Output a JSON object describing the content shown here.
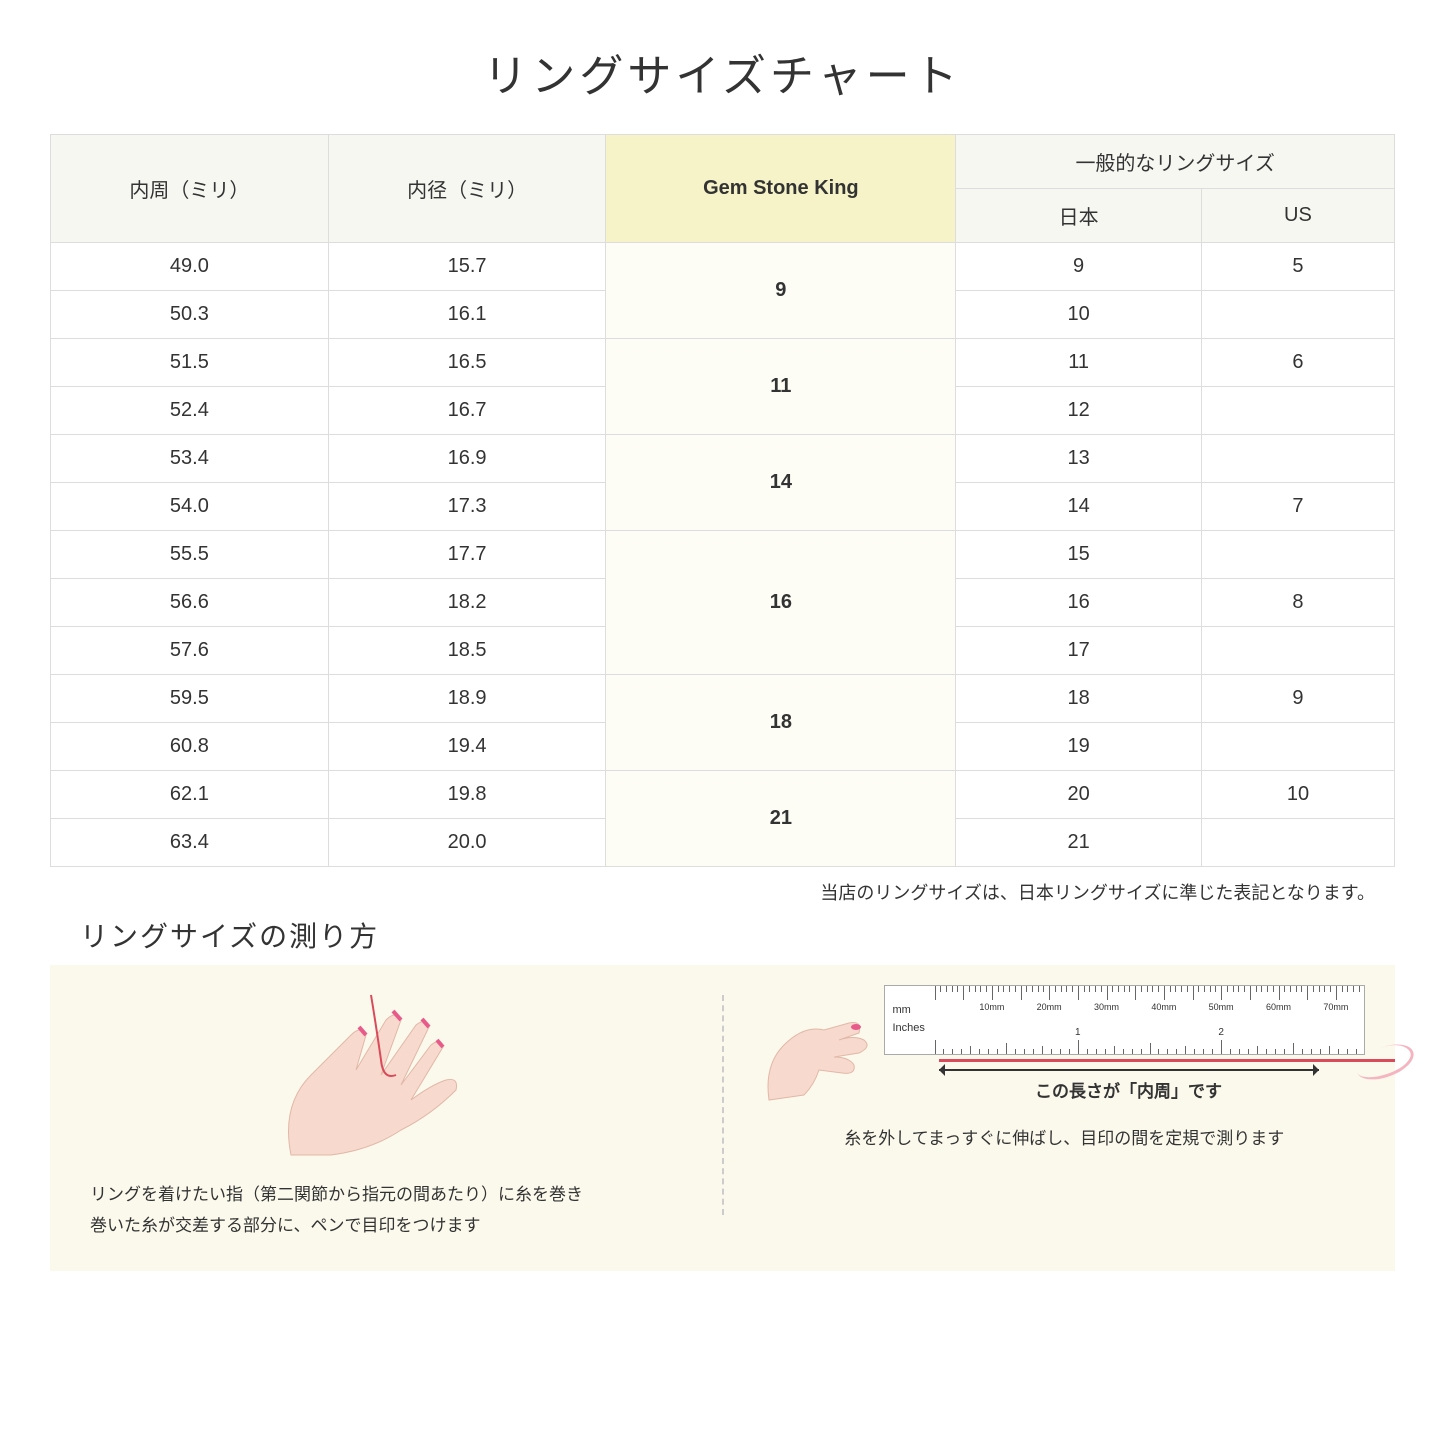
{
  "title": "リングサイズチャート",
  "table": {
    "headers": {
      "circumference": "内周（ミリ）",
      "diameter": "内径（ミリ）",
      "gsk": "Gem Stone King",
      "common": "一般的なリングサイズ",
      "japan": "日本",
      "us": "US"
    },
    "groups": [
      {
        "gsk": "9",
        "rows": [
          {
            "c": "49.0",
            "d": "15.7",
            "jp": "9",
            "us": "5"
          },
          {
            "c": "50.3",
            "d": "16.1",
            "jp": "10",
            "us": ""
          }
        ]
      },
      {
        "gsk": "11",
        "rows": [
          {
            "c": "51.5",
            "d": "16.5",
            "jp": "11",
            "us": "6"
          },
          {
            "c": "52.4",
            "d": "16.7",
            "jp": "12",
            "us": ""
          }
        ]
      },
      {
        "gsk": "14",
        "rows": [
          {
            "c": "53.4",
            "d": "16.9",
            "jp": "13",
            "us": ""
          },
          {
            "c": "54.0",
            "d": "17.3",
            "jp": "14",
            "us": "7"
          }
        ]
      },
      {
        "gsk": "16",
        "rows": [
          {
            "c": "55.5",
            "d": "17.7",
            "jp": "15",
            "us": ""
          },
          {
            "c": "56.6",
            "d": "18.2",
            "jp": "16",
            "us": "8"
          },
          {
            "c": "57.6",
            "d": "18.5",
            "jp": "17",
            "us": ""
          }
        ]
      },
      {
        "gsk": "18",
        "rows": [
          {
            "c": "59.5",
            "d": "18.9",
            "jp": "18",
            "us": "9"
          },
          {
            "c": "60.8",
            "d": "19.4",
            "jp": "19",
            "us": ""
          }
        ]
      },
      {
        "gsk": "21",
        "rows": [
          {
            "c": "62.1",
            "d": "19.8",
            "jp": "20",
            "us": "10"
          },
          {
            "c": "63.4",
            "d": "20.0",
            "jp": "21",
            "us": ""
          }
        ]
      }
    ]
  },
  "note": "当店のリングサイズは、日本リングサイズに準じた表記となります。",
  "subtitle": "リングサイズの測り方",
  "step1_caption_l1": "リングを着けたい指（第二関節から指元の間あたり）に糸を巻き",
  "step1_caption_l2": "巻いた糸が交差する部分に、ペンで目印をつけます",
  "step2_arrow_label": "この長さが「内周」です",
  "step2_caption": "糸を外してまっすぐに伸ばし、目印の間を定規で測ります",
  "ruler": {
    "mm_label": "mm",
    "inches_label": "Inches",
    "mm_marks": [
      "10mm",
      "20mm",
      "30mm",
      "40mm",
      "50mm",
      "60mm",
      "70mm"
    ],
    "inch_marks": [
      "1",
      "2"
    ]
  },
  "colors": {
    "header_bg": "#f7f7f2",
    "highlight_bg": "#f5f3c7",
    "instruction_bg": "#fbf9ec",
    "thread": "#d94a5a",
    "skin": "#f8d9cd",
    "nail": "#e85a8a"
  }
}
